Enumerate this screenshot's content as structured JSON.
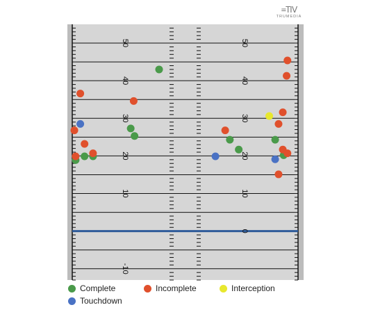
{
  "brand": {
    "logo_mark": "=TⅣ",
    "logo_text": "TRUMEDIA"
  },
  "colors": {
    "field": "#d6d6d6",
    "sideline": "#bcbcbc",
    "yard_line": "#111111",
    "scrimmage_line": "#2e5b9a",
    "Complete": "#4a9a4a",
    "Incomplete": "#e0502c",
    "Interception": "#e8e82e",
    "Touchdown": "#4a72c4"
  },
  "chart_data": {
    "type": "scatter",
    "title": "",
    "xlabel": "",
    "ylabel": "",
    "ylim": [
      -13,
      55
    ],
    "xlim": [
      0,
      53.3
    ],
    "yard_line_markers": [
      50,
      45,
      40,
      35,
      30,
      25,
      20,
      15,
      10,
      5,
      0,
      -5,
      -10
    ],
    "yard_labels_left": [
      "50",
      "40",
      "30",
      "20",
      "10",
      "-10"
    ],
    "yard_labels_left_values": [
      50,
      40,
      30,
      20,
      10,
      -10
    ],
    "yard_labels_right": [
      "50",
      "40",
      "30",
      "20",
      "10",
      "0"
    ],
    "yard_labels_right_values": [
      50,
      40,
      30,
      20,
      10,
      0
    ],
    "line_of_scrimmage": 0,
    "legend": [
      "Complete",
      "Incomplete",
      "Interception",
      "Touchdown"
    ],
    "series": [
      {
        "name": "Complete",
        "points": [
          {
            "x": 20.5,
            "y": 43.0
          },
          {
            "x": 13.8,
            "y": 27.3
          },
          {
            "x": 14.7,
            "y": 25.3
          },
          {
            "x": 37.2,
            "y": 24.3
          },
          {
            "x": 39.3,
            "y": 21.7
          },
          {
            "x": 47.9,
            "y": 24.3
          },
          {
            "x": 49.9,
            "y": 20.2
          },
          {
            "x": 0.8,
            "y": 18.9
          },
          {
            "x": 2.9,
            "y": 19.9
          },
          {
            "x": 4.9,
            "y": 19.9
          }
        ]
      },
      {
        "name": "Incomplete",
        "points": [
          {
            "x": 1.9,
            "y": 36.6
          },
          {
            "x": 14.5,
            "y": 34.6
          },
          {
            "x": 0.5,
            "y": 26.8
          },
          {
            "x": 36.1,
            "y": 26.8
          },
          {
            "x": 2.9,
            "y": 23.2
          },
          {
            "x": 4.9,
            "y": 20.7
          },
          {
            "x": 0.8,
            "y": 19.9
          },
          {
            "x": 50.8,
            "y": 45.4
          },
          {
            "x": 50.6,
            "y": 41.3
          },
          {
            "x": 49.7,
            "y": 31.6
          },
          {
            "x": 48.7,
            "y": 28.5
          },
          {
            "x": 49.7,
            "y": 21.7
          },
          {
            "x": 50.8,
            "y": 20.7
          },
          {
            "x": 48.7,
            "y": 15.1
          }
        ]
      },
      {
        "name": "Interception",
        "points": [
          {
            "x": 46.5,
            "y": 30.6
          }
        ]
      },
      {
        "name": "Touchdown",
        "points": [
          {
            "x": 1.9,
            "y": 28.5
          },
          {
            "x": 33.8,
            "y": 19.9
          },
          {
            "x": 47.9,
            "y": 19.1
          }
        ]
      }
    ]
  }
}
